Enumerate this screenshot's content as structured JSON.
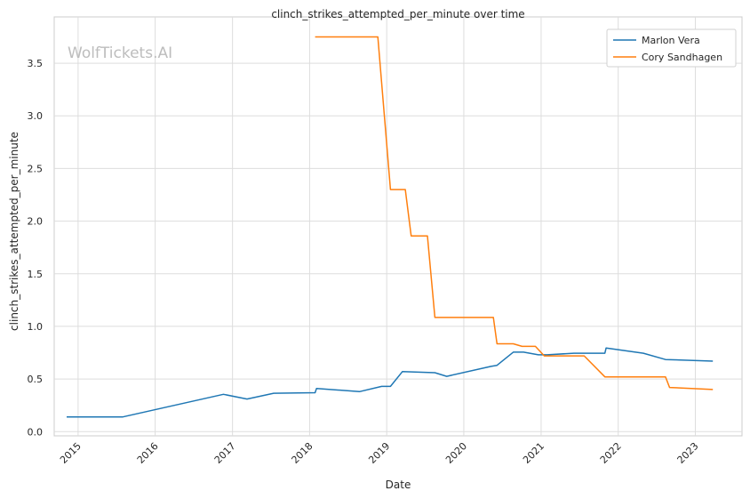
{
  "chart_data": {
    "type": "line",
    "title": "clinch_strikes_attempted_per_minute over time",
    "xlabel": "Date",
    "ylabel": "clinch_strikes_attempted_per_minute",
    "watermark": "WolfTickets.AI",
    "grid": true,
    "legend_position": "top-right",
    "x_ticks": [
      "2015",
      "2016",
      "2017",
      "2018",
      "2019",
      "2020",
      "2021",
      "2022",
      "2023"
    ],
    "y_ticks": [
      "0.0",
      "0.5",
      "1.0",
      "1.5",
      "2.0",
      "2.5",
      "3.0",
      "3.5"
    ],
    "xlim": [
      "2014-09-10",
      "2023-08-10"
    ],
    "ylim": [
      -0.04,
      3.94
    ],
    "series": [
      {
        "name": "Marlon Vera",
        "color": "#1f77b4",
        "points": [
          [
            "2014-11-08",
            0.14
          ],
          [
            "2015-08-01",
            0.14
          ],
          [
            "2016-11-19",
            0.355
          ],
          [
            "2017-03-11",
            0.31
          ],
          [
            "2017-07-15",
            0.365
          ],
          [
            "2018-01-27",
            0.37
          ],
          [
            "2018-02-03",
            0.41
          ],
          [
            "2018-08-25",
            0.38
          ],
          [
            "2018-12-08",
            0.43
          ],
          [
            "2019-01-19",
            0.43
          ],
          [
            "2019-03-16",
            0.57
          ],
          [
            "2019-08-17",
            0.56
          ],
          [
            "2019-10-12",
            0.525
          ],
          [
            "2020-05-09",
            0.62
          ],
          [
            "2020-06-06",
            0.63
          ],
          [
            "2020-08-22",
            0.755
          ],
          [
            "2020-10-10",
            0.755
          ],
          [
            "2020-12-19",
            0.73
          ],
          [
            "2021-01-30",
            0.73
          ],
          [
            "2021-06-05",
            0.745
          ],
          [
            "2021-10-30",
            0.745
          ],
          [
            "2021-11-05",
            0.795
          ],
          [
            "2022-04-30",
            0.745
          ],
          [
            "2022-08-13",
            0.685
          ],
          [
            "2023-03-25",
            0.67
          ]
        ]
      },
      {
        "name": "Cory Sandhagen",
        "color": "#ff7f0e",
        "points": [
          [
            "2018-01-27",
            3.75
          ],
          [
            "2018-11-20",
            3.75
          ],
          [
            "2019-01-19",
            2.3
          ],
          [
            "2019-03-30",
            2.3
          ],
          [
            "2019-04-27",
            1.86
          ],
          [
            "2019-07-13",
            1.86
          ],
          [
            "2019-08-17",
            1.085
          ],
          [
            "2020-05-20",
            1.085
          ],
          [
            "2020-06-06",
            0.835
          ],
          [
            "2020-08-22",
            0.835
          ],
          [
            "2020-10-03",
            0.81
          ],
          [
            "2020-12-05",
            0.81
          ],
          [
            "2021-01-16",
            0.72
          ],
          [
            "2021-07-24",
            0.72
          ],
          [
            "2021-10-30",
            0.52
          ],
          [
            "2022-08-13",
            0.52
          ],
          [
            "2022-09-01",
            0.42
          ],
          [
            "2023-03-25",
            0.4
          ]
        ]
      }
    ]
  }
}
